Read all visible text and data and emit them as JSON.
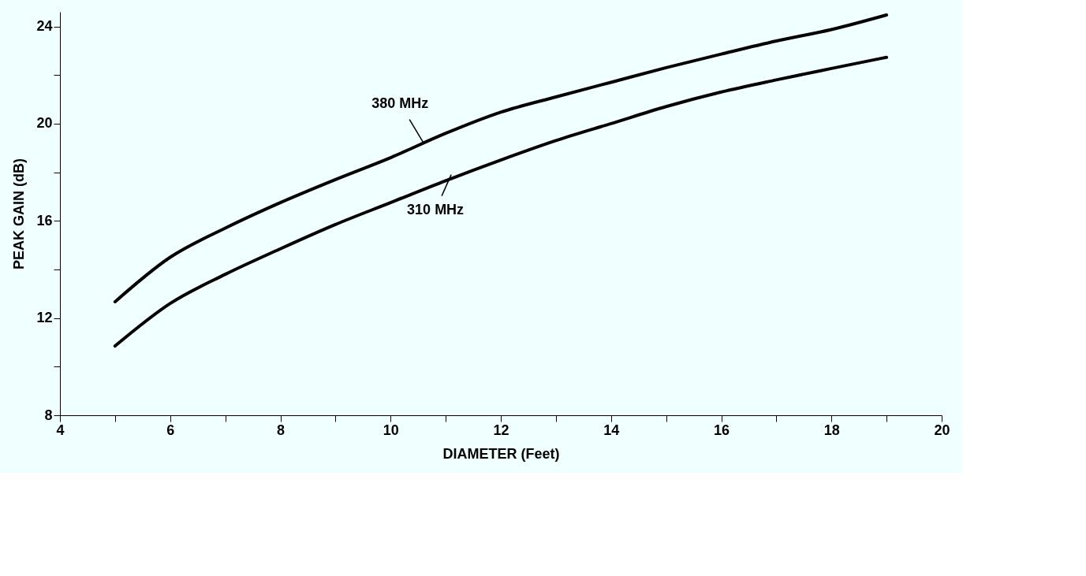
{
  "chart_data": {
    "type": "line",
    "xlabel": "DIAMETER (Feet)",
    "ylabel": "PEAK GAIN (dB)",
    "x": [
      5,
      6,
      7,
      8,
      9,
      10,
      11,
      12,
      13,
      14,
      15,
      16,
      17,
      18,
      19
    ],
    "series": [
      {
        "color": "#000000",
        "values": [
          12.67,
          14.5,
          15.7,
          16.75,
          17.7,
          18.6,
          19.6,
          20.47,
          21.1,
          21.7,
          22.3,
          22.86,
          23.4,
          23.87,
          24.47
        ]
      },
      {
        "color": "#000000",
        "values": [
          10.85,
          12.6,
          13.8,
          14.85,
          15.85,
          16.75,
          17.65,
          18.5,
          19.3,
          20.0,
          20.7,
          21.3,
          21.8,
          22.27,
          22.73
        ]
      }
    ],
    "annotations": [
      {
        "text": "380 MHz",
        "x": 10.6,
        "y": 19.2
      },
      {
        "text": "310 MHz",
        "x": 11.1,
        "y": 17.9
      }
    ],
    "xlim": [
      4,
      20
    ],
    "ylim": [
      8,
      24.6
    ],
    "xticks": [
      4,
      {
        "value": 5,
        "label": null
      },
      6,
      {
        "value": 7,
        "label": null
      },
      8,
      {
        "value": 9,
        "label": null
      },
      10,
      {
        "value": 11,
        "label": null
      },
      12,
      {
        "value": 13,
        "label": null
      },
      14,
      {
        "value": 15,
        "label": null
      },
      16,
      {
        "value": 17,
        "label": null
      },
      18,
      {
        "value": 19,
        "label": null
      },
      20
    ],
    "yticks": [
      8,
      {
        "value": 10,
        "label": null
      },
      12,
      {
        "value": 14,
        "label": null
      },
      16,
      {
        "value": 18,
        "label": null
      },
      20,
      {
        "value": 22,
        "label": null
      },
      24
    ],
    "grid": false,
    "legend": false,
    "marker": "none",
    "line_style": "solid"
  }
}
